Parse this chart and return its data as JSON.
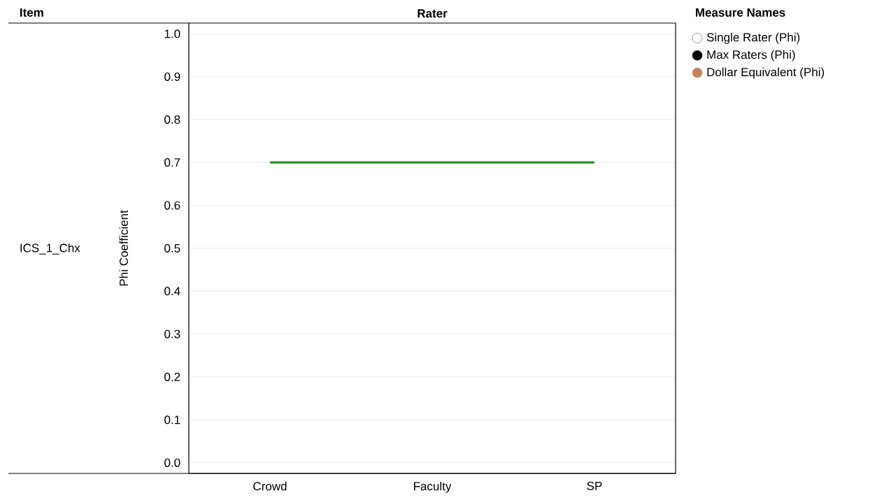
{
  "chart_data": {
    "type": "line",
    "xlabel": "Rater",
    "ylabel": "Phi Coefficient",
    "legend_title": "Measure Names",
    "annotations": [
      "Item",
      "ICS_1_Chx"
    ],
    "categories": [
      "Crowd",
      "Faculty",
      "SP"
    ],
    "series": [
      {
        "color": "#1e8c1e",
        "values": [
          0.7,
          0.7,
          0.7
        ]
      },
      {
        "name": "Single Rater (Phi)",
        "type": "scatter",
        "color": "#000000",
        "values": [
          null,
          null,
          null
        ]
      },
      {
        "name": "Max Raters (Phi)",
        "type": "scatter",
        "color": "#000000",
        "values": [
          null,
          null,
          null
        ]
      },
      {
        "name": "Dollar Equivalent (Phi)",
        "type": "scatter",
        "color": "#c8825a",
        "values": [
          null,
          null,
          null
        ]
      }
    ],
    "ylim": [
      -0.025,
      1.025
    ],
    "yticks": [
      {
        "value": 0,
        "label": "0.0"
      },
      {
        "value": 0.1,
        "label": "0.1"
      },
      {
        "value": 0.2,
        "label": "0.2"
      },
      {
        "value": 0.3,
        "label": "0.3"
      },
      {
        "value": 0.4,
        "label": "0.4"
      },
      {
        "value": 0.5,
        "label": "0.5"
      },
      {
        "value": 0.6,
        "label": "0.6"
      },
      {
        "value": 0.7,
        "label": "0.7"
      },
      {
        "value": 0.8,
        "label": "0.8"
      },
      {
        "value": 0.9,
        "label": "0.9"
      },
      {
        "value": 1,
        "label": "1.0"
      }
    ],
    "grid": "y",
    "legend": "top right",
    "line_style": "solid"
  }
}
